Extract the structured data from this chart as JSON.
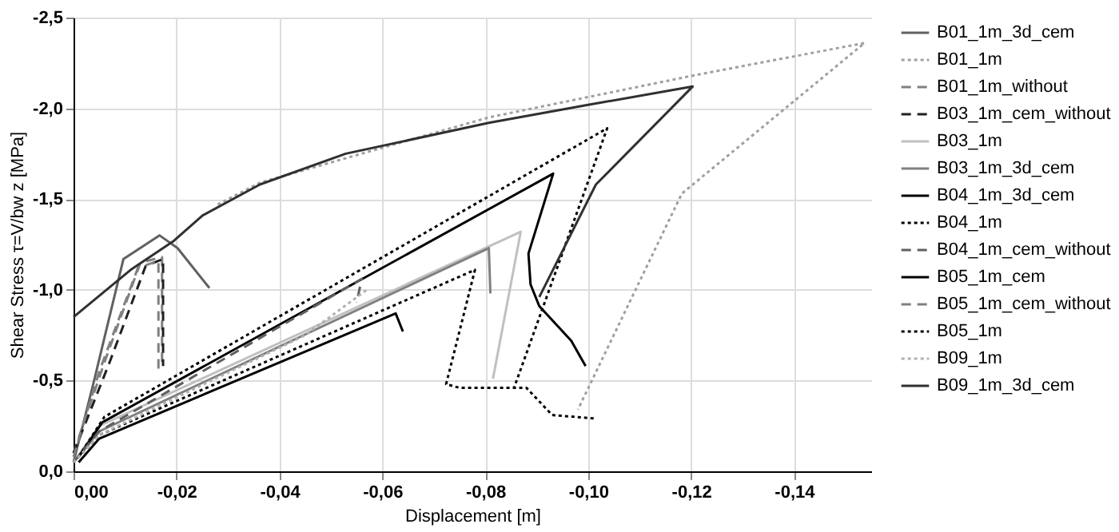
{
  "chart_data": {
    "type": "line",
    "xlabel": "Displacement [m]",
    "ylabel": "Shear Stress τ=V/bw z [MPa]",
    "xlim": [
      0,
      -0.155
    ],
    "ylim": [
      0,
      -2.5
    ],
    "xticks": [
      {
        "value": 0,
        "label": "0,00"
      },
      {
        "value": -0.02,
        "label": "-0,02"
      },
      {
        "value": -0.04,
        "label": "-0,04"
      },
      {
        "value": -0.06,
        "label": "-0,06"
      },
      {
        "value": -0.08,
        "label": "-0,08"
      },
      {
        "value": -0.1,
        "label": "-0,10"
      },
      {
        "value": -0.12,
        "label": "-0,12"
      },
      {
        "value": -0.14,
        "label": "-0,14"
      }
    ],
    "yticks": [
      {
        "value": 0,
        "label": "0,0"
      },
      {
        "value": -0.5,
        "label": "-0,5"
      },
      {
        "value": -1,
        "label": "-1,0"
      },
      {
        "value": -1.5,
        "label": "-1,5"
      },
      {
        "value": -2,
        "label": "-2,0"
      },
      {
        "value": -2.5,
        "label": "-2,5"
      }
    ],
    "grid": true,
    "legend": "right",
    "series": [
      {
        "name": "B01_1m_3d_cem",
        "color": "#606060",
        "line_style": "solid",
        "x": [
          0,
          -0.004,
          -0.0097,
          -0.0167,
          -0.0202,
          -0.0264
        ],
        "values": [
          -0.05,
          -0.5,
          -1.17,
          -1.3,
          -1.23,
          -1.01
        ]
      },
      {
        "name": "B01_1m",
        "color": "#a0a0a0",
        "line_style": "dotted",
        "x": [
          -0.028,
          -0.0362,
          -0.0807,
          -0.1203,
          -0.1537,
          -0.1182,
          -0.098
        ],
        "values": [
          -1.47,
          -1.59,
          -1.95,
          -2.18,
          -2.36,
          -1.53,
          -0.34
        ]
      },
      {
        "name": "B01_1m_without",
        "color": "#808080",
        "line_style": "dashed",
        "x": [
          0,
          -0.006,
          -0.013,
          -0.0172,
          -0.0172
        ],
        "values": [
          -0.1,
          -0.6,
          -1.15,
          -1.18,
          -0.6
        ]
      },
      {
        "name": "B03_1m_cem_without",
        "color": "#202020",
        "line_style": "dashed",
        "x": [
          0,
          -0.007,
          -0.014,
          -0.0174,
          -0.0174
        ],
        "values": [
          -0.1,
          -0.6,
          -1.13,
          -1.17,
          -0.58
        ]
      },
      {
        "name": "B03_1m",
        "color": "#c0c0c0",
        "line_style": "solid",
        "x": [
          0,
          -0.005,
          -0.0869,
          -0.0815
        ],
        "values": [
          -0.05,
          -0.25,
          -1.32,
          -0.51
        ]
      },
      {
        "name": "B03_1m_3d_cem",
        "color": "#808080",
        "line_style": "solid",
        "x": [
          0,
          -0.005,
          -0.0807,
          -0.081
        ],
        "values": [
          -0.05,
          -0.22,
          -1.23,
          -0.98
        ]
      },
      {
        "name": "B04_1m_3d_cem",
        "color": "#000000",
        "line_style": "solid",
        "x": [
          -0.001,
          -0.0056,
          -0.0932,
          -0.0884,
          -0.0888,
          -0.0905,
          -0.0967,
          -0.0995
        ],
        "values": [
          -0.08,
          -0.27,
          -1.64,
          -1.2,
          -1.03,
          -0.91,
          -0.72,
          -0.58
        ]
      },
      {
        "name": "B04_1m",
        "color": "#000000",
        "line_style": "dotted",
        "x": [
          -0.001,
          -0.006,
          -0.1037,
          -0.0856
        ],
        "values": [
          -0.08,
          -0.3,
          -1.89,
          -0.46
        ]
      },
      {
        "name": "B04_1m_cem_without",
        "color": "#606060",
        "line_style": "dashed",
        "x": [
          0,
          -0.005,
          -0.056,
          -0.055
        ],
        "values": [
          -0.05,
          -0.22,
          -1.06,
          -0.93
        ]
      },
      {
        "name": "B05_1m_cem",
        "color": "#000000",
        "line_style": "solid",
        "x": [
          -0.001,
          -0.005,
          -0.0626,
          -0.064
        ],
        "values": [
          -0.05,
          -0.18,
          -0.87,
          -0.77
        ]
      },
      {
        "name": "B05_1m_cem_without",
        "color": "#808080",
        "line_style": "dashed",
        "x": [
          0,
          -0.005,
          -0.0125,
          -0.0165,
          -0.0165
        ],
        "values": [
          -0.08,
          -0.55,
          -1.12,
          -1.16,
          -0.55
        ]
      },
      {
        "name": "B05_1m",
        "color": "#000000",
        "line_style": "dotted",
        "x": [
          0,
          -0.005,
          -0.078,
          -0.0724,
          -0.075,
          -0.088,
          -0.093,
          -0.1016
        ],
        "values": [
          -0.05,
          -0.2,
          -1.11,
          -0.48,
          -0.46,
          -0.46,
          -0.31,
          -0.29
        ]
      },
      {
        "name": "B09_1m",
        "color": "#b0b0b0",
        "line_style": "dotted",
        "x": [
          0,
          -0.005,
          -0.045,
          -0.057
        ],
        "values": [
          -0.05,
          -0.2,
          -0.75,
          -1.0
        ]
      },
      {
        "name": "B09_1m_3d_cem",
        "color": "#303030",
        "line_style": "solid",
        "x": [
          0,
          -0.0111,
          -0.0195,
          -0.0251,
          -0.0362,
          -0.0529,
          -0.0807,
          -0.1002,
          -0.1203,
          -0.1015,
          -0.0905
        ],
        "values": [
          -0.85,
          -1.11,
          -1.27,
          -1.41,
          -1.58,
          -1.75,
          -1.92,
          -2.02,
          -2.12,
          -1.58,
          -0.96
        ]
      }
    ]
  }
}
